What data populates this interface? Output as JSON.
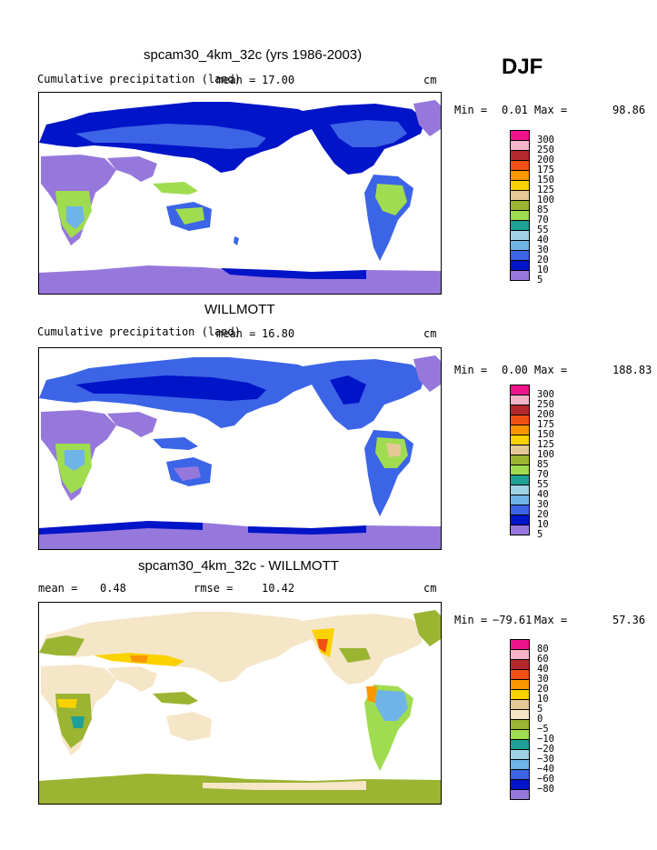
{
  "season": "DJF",
  "units_label": "cm",
  "panels": [
    {
      "title": "spcam30_4km_32c (yrs 1986-2003)",
      "subtitle": "Cumulative precipitation (land)",
      "stat_label": "mean =",
      "stat_value": "17.00",
      "min_label": "Min =",
      "min_value": "0.01",
      "max_label": "Max =",
      "max_value": "98.86",
      "legend_levels": [
        "300",
        "250",
        "200",
        "175",
        "150",
        "125",
        "100",
        "85",
        "70",
        "55",
        "40",
        "30",
        "20",
        "10",
        "5"
      ],
      "legend_colors": [
        "#f0148c",
        "#f5b4c8",
        "#b4282d",
        "#f05014",
        "#fa9600",
        "#fad200",
        "#e6c896",
        "#9bb432",
        "#a0dc50",
        "#1ea096",
        "#a0d2e6",
        "#6eb4e6",
        "#3c64e6",
        "#0014c8",
        "#9678dc"
      ]
    },
    {
      "title": "WILLMOTT",
      "subtitle": "Cumulative precipitation (land)",
      "stat_label": "mean =",
      "stat_value": "16.80",
      "min_label": "Min =",
      "min_value": "0.00",
      "max_label": "Max =",
      "max_value": "188.83",
      "legend_levels": [
        "300",
        "250",
        "200",
        "175",
        "150",
        "125",
        "100",
        "85",
        "70",
        "55",
        "40",
        "30",
        "20",
        "10",
        "5"
      ],
      "legend_colors": [
        "#f0148c",
        "#f5b4c8",
        "#b4282d",
        "#f05014",
        "#fa9600",
        "#fad200",
        "#e6c896",
        "#9bb432",
        "#a0dc50",
        "#1ea096",
        "#a0d2e6",
        "#6eb4e6",
        "#3c64e6",
        "#0014c8",
        "#9678dc"
      ]
    },
    {
      "title": "spcam30_4km_32c - WILLMOTT",
      "stat_label": "mean =",
      "stat_value": "0.48",
      "rmse_label": "rmse =",
      "rmse_value": "10.42",
      "min_label": "Min =",
      "min_value": "−79.61",
      "max_label": "Max =",
      "max_value": "57.36",
      "legend_levels": [
        "80",
        "60",
        "40",
        "30",
        "20",
        "10",
        "5",
        "0",
        "−5",
        "−10",
        "−20",
        "−30",
        "−40",
        "−60",
        "−80"
      ],
      "legend_colors": [
        "#f0148c",
        "#f5b4c8",
        "#b4282d",
        "#f05014",
        "#fa9600",
        "#fad200",
        "#e6c896",
        "#f5e6c8",
        "#9bb432",
        "#a0dc50",
        "#1ea096",
        "#a0d2e6",
        "#6eb4e6",
        "#3c64e6",
        "#0014c8",
        "#9678dc"
      ]
    }
  ]
}
